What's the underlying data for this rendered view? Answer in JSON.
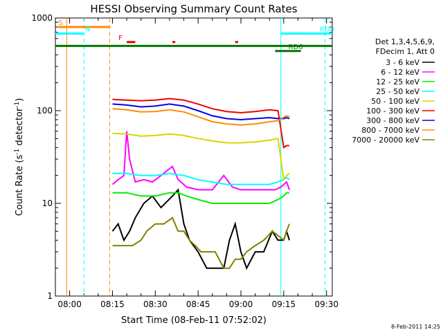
{
  "chart_data": {
    "type": "line",
    "title": "HESSI Observing Summary Count Rates",
    "xlabel": "Start Time (08-Feb-11 07:52:02)",
    "ylabel_main": "Count Rate (s",
    "ylabel_sup": "-1",
    "ylabel_mid": " detector",
    "ylabel_sup2": "-1",
    "ylabel_end": ")",
    "x_axis": {
      "start_min": -5,
      "end_min": 92,
      "tick_labels": [
        "08:00",
        "08:15",
        "08:30",
        "08:45",
        "09:00",
        "09:15",
        "09:30"
      ],
      "tick_values_min": [
        0,
        15,
        30,
        45,
        60,
        75,
        90
      ]
    },
    "y_axis": {
      "scale": "log",
      "ylim": [
        1,
        1000
      ],
      "tick_labels": [
        "1",
        "10",
        "100",
        "1000"
      ],
      "tick_values": [
        1,
        10,
        100,
        1000
      ]
    },
    "legend": {
      "placement": "right",
      "header": [
        "Det 1,3,4,5,6,9,",
        "FDecim 1, Att 0"
      ],
      "entries": [
        {
          "label": "3 - 6 keV",
          "color": "#000000"
        },
        {
          "label": "6 - 12 keV",
          "color": "#ff00ff"
        },
        {
          "label": "12 - 25 keV",
          "color": "#00ee00"
        },
        {
          "label": "25 - 50 keV",
          "color": "#00ffff"
        },
        {
          "label": "50 - 100 keV",
          "color": "#d6d600"
        },
        {
          "label": "100 - 300 keV",
          "color": "#ee0000"
        },
        {
          "label": "300 - 800 keV",
          "color": "#0000ee"
        },
        {
          "label": "800 - 7000 keV",
          "color": "#ff8c00"
        },
        {
          "label": "7000 - 20000 keV",
          "color": "#808000"
        }
      ]
    },
    "series": [
      {
        "name": "3 - 6 keV",
        "color": "#000000",
        "x": [
          15,
          17,
          19,
          21,
          23,
          26,
          29,
          32,
          36,
          38,
          40,
          42,
          45,
          48,
          51,
          54,
          56,
          58,
          60,
          62,
          65,
          68,
          71,
          73,
          75,
          76,
          77
        ],
        "y": [
          5,
          6,
          4,
          5,
          7,
          10,
          12,
          9,
          12,
          14,
          6,
          4,
          3,
          2,
          2,
          2,
          4,
          6,
          3,
          2,
          3,
          3,
          5,
          4,
          4,
          5,
          4
        ]
      },
      {
        "name": "6 - 12 keV",
        "color": "#ff00ff",
        "x": [
          15,
          17,
          19,
          20,
          21,
          23,
          26,
          29,
          32,
          36,
          38,
          41,
          45,
          50,
          54,
          57,
          60,
          64,
          68,
          72,
          74,
          75,
          76,
          77
        ],
        "y": [
          16,
          18,
          20,
          60,
          30,
          17,
          18,
          17,
          20,
          25,
          18,
          15,
          14,
          14,
          20,
          15,
          14,
          14,
          14,
          14,
          15,
          16,
          17,
          14
        ]
      },
      {
        "name": "12 - 25 keV",
        "color": "#00ee00",
        "x": [
          15,
          20,
          25,
          30,
          35,
          38,
          41,
          45,
          50,
          55,
          60,
          65,
          70,
          73,
          75,
          76,
          77
        ],
        "y": [
          13,
          13,
          12,
          12,
          13,
          13,
          12,
          11,
          10,
          10,
          10,
          10,
          10,
          11,
          12,
          13,
          13
        ]
      },
      {
        "name": "25 - 50 keV",
        "color": "#00ffff",
        "x": [
          15,
          20,
          25,
          30,
          35,
          40,
          45,
          50,
          55,
          60,
          65,
          70,
          73,
          75,
          76,
          77
        ],
        "y": [
          21,
          21,
          20,
          20,
          21,
          20,
          18,
          17,
          16,
          16,
          16,
          16,
          17,
          18,
          19,
          18
        ]
      },
      {
        "name": "50 - 100 keV",
        "color": "#d6d600",
        "x": [
          15,
          20,
          25,
          30,
          35,
          40,
          45,
          50,
          55,
          60,
          65,
          70,
          73,
          75,
          76,
          77
        ],
        "y": [
          57,
          56,
          53,
          54,
          56,
          54,
          50,
          47,
          45,
          45,
          46,
          48,
          50,
          18,
          20,
          21
        ]
      },
      {
        "name": "100 - 300 keV",
        "color": "#ee0000",
        "x": [
          15,
          20,
          25,
          30,
          35,
          40,
          45,
          50,
          55,
          60,
          65,
          70,
          73,
          75,
          76,
          77
        ],
        "y": [
          132,
          130,
          128,
          130,
          135,
          130,
          118,
          105,
          98,
          95,
          98,
          102,
          100,
          40,
          42,
          42
        ]
      },
      {
        "name": "300 - 800 keV",
        "color": "#0000ee",
        "x": [
          15,
          20,
          25,
          30,
          35,
          40,
          45,
          50,
          55,
          60,
          65,
          70,
          73,
          75,
          76,
          77
        ],
        "y": [
          118,
          115,
          110,
          112,
          118,
          112,
          100,
          88,
          82,
          80,
          82,
          84,
          82,
          82,
          84,
          82
        ]
      },
      {
        "name": "800 - 7000 keV",
        "color": "#ff8c00",
        "x": [
          15,
          20,
          25,
          30,
          35,
          40,
          45,
          50,
          55,
          60,
          65,
          70,
          73,
          75,
          76,
          77
        ],
        "y": [
          105,
          102,
          97,
          98,
          102,
          97,
          86,
          76,
          72,
          70,
          72,
          76,
          78,
          85,
          88,
          86
        ]
      },
      {
        "name": "7000 - 20000 keV",
        "color": "#808000",
        "x": [
          15,
          18,
          22,
          25,
          27,
          30,
          33,
          36,
          38,
          40,
          42,
          44,
          46,
          48,
          51,
          54,
          56,
          58,
          60,
          62,
          65,
          68,
          71,
          73,
          75,
          76,
          77
        ],
        "y": [
          3.5,
          3.5,
          3.5,
          4,
          5,
          6,
          6,
          7,
          5,
          5,
          4,
          3.5,
          3,
          3,
          3,
          2,
          2,
          2.5,
          2.5,
          3,
          3.5,
          4,
          5,
          4.5,
          4,
          5,
          6
        ]
      }
    ],
    "status_bars": [
      {
        "label": "S",
        "color": "#ff8c00",
        "y": 800,
        "x_start": -4,
        "x_end": 14
      },
      {
        "label": "N",
        "color": "#00ffff",
        "y": 680,
        "x_start": -5,
        "x_end": 5
      },
      {
        "label": "F",
        "color": "#ee0000",
        "y": 550,
        "segments": [
          [
            20,
            23
          ],
          [
            36,
            37
          ],
          [
            58,
            59
          ]
        ]
      },
      {
        "label": "RD0",
        "color": "#00ffff",
        "y": 680,
        "x_start": 74,
        "x_end": 92
      },
      {
        "label": "RD6",
        "color": "#007700",
        "y": 440,
        "x_start": 72,
        "x_end": 81
      }
    ],
    "long_bar": {
      "color": "#007700",
      "y": 500,
      "x_start": -5,
      "x_end": 92
    },
    "vertical_lines": [
      {
        "x": -1,
        "color": "#ff8c00",
        "style": "solid"
      },
      {
        "x": 5,
        "color": "#00ffff",
        "style": "dashed"
      },
      {
        "x": 14,
        "color": "#ff8c00",
        "style": "dashed"
      },
      {
        "x": 74,
        "color": "#00ffff",
        "style": "solid"
      },
      {
        "x": 89.5,
        "color": "#00ffff",
        "style": "dashed"
      }
    ],
    "footer_date": "8-Feb-2011 14:25"
  }
}
